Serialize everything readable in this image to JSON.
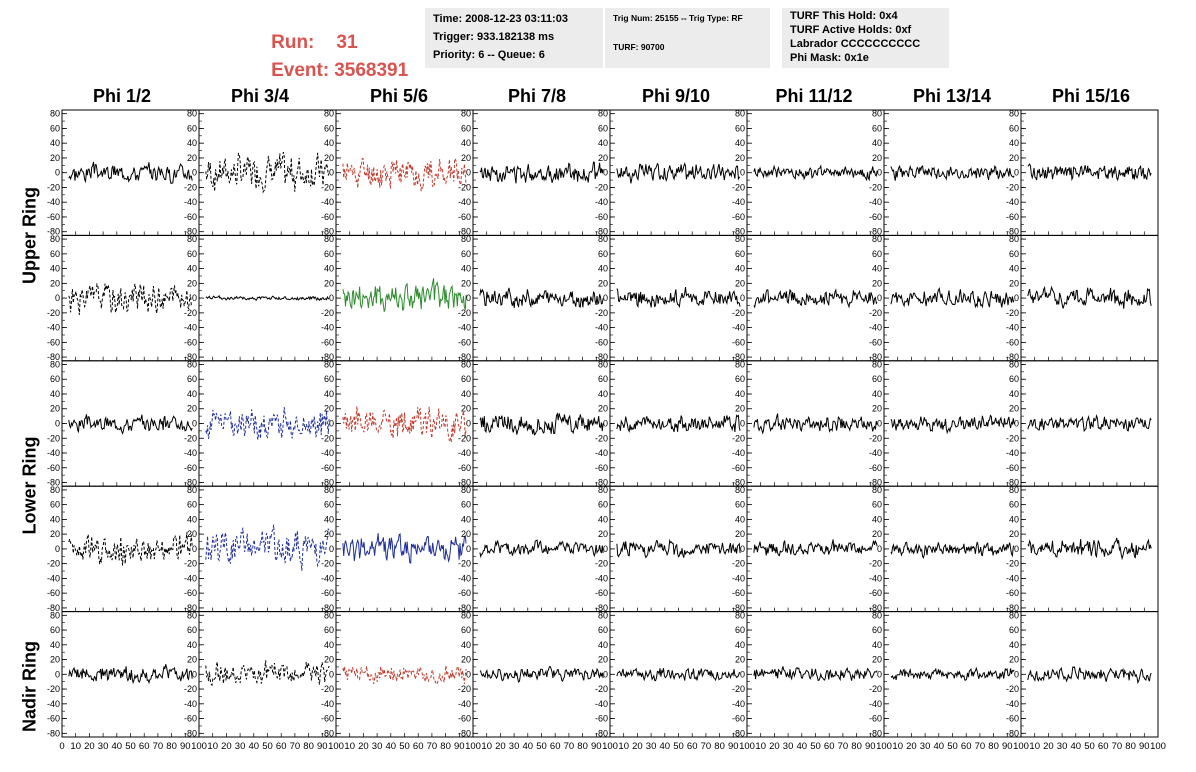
{
  "header": {
    "run_label": "Run:",
    "run_value": "31",
    "event_label": "Event:",
    "event_value": "3568391"
  },
  "time_box": {
    "line1": "Time: 2008-12-23 03:11:03",
    "line2": "Trigger: 933.182138 ms",
    "line3": "Priority: 6 -- Queue: 6"
  },
  "trig_box": {
    "line1": "Trig Num: 25155 -- Trig Type: RF",
    "line2": "TURF: 90700"
  },
  "turf_box": {
    "line1": "TURF This Hold: 0x4",
    "line2": "TURF Active Holds: 0xf",
    "line3": "Labrador CCCCCCCCCC",
    "line4": "Phi Mask: 0x1e"
  },
  "columns": [
    "Phi 1/2",
    "Phi 3/4",
    "Phi 5/6",
    "Phi 7/8",
    "Phi 9/10",
    "Phi 11/12",
    "Phi 13/14",
    "Phi 15/16"
  ],
  "rows": [
    "Upper Ring",
    "Lower Ring",
    "Nadir Ring"
  ],
  "chart_data": {
    "type": "line",
    "title": "",
    "xlabel": "",
    "ylabel": "",
    "xlim": [
      0,
      100
    ],
    "ylim": [
      -85,
      85
    ],
    "y_ticks": [
      "80",
      "60",
      "40",
      "20",
      "0",
      "-20",
      "-40",
      "-60",
      "-80"
    ],
    "x_tick_labels_first": [
      "0",
      "10",
      "20",
      "30",
      "40",
      "50",
      "60",
      "70",
      "80",
      "90",
      "100"
    ],
    "x_tick_labels_rest": [
      "10",
      "20",
      "30",
      "40",
      "50",
      "60",
      "70",
      "80",
      "90",
      "100"
    ],
    "grid": false,
    "colors": {
      "black": "#000000",
      "red": "#c0392b",
      "green": "#2e8b2e",
      "blue": "#1f2f9a"
    },
    "panels": [
      [
        {
          "color": "black",
          "dashed": false,
          "amp": 18,
          "seed": 3
        },
        {
          "color": "black",
          "dashed": true,
          "amp": 35,
          "seed": 7
        },
        {
          "color": "red",
          "dashed": true,
          "amp": 32,
          "seed": 11
        },
        {
          "color": "black",
          "dashed": false,
          "amp": 18,
          "seed": 13
        },
        {
          "color": "black",
          "dashed": false,
          "amp": 18,
          "seed": 17
        },
        {
          "color": "black",
          "dashed": false,
          "amp": 12,
          "seed": 19
        },
        {
          "color": "black",
          "dashed": false,
          "amp": 14,
          "seed": 23
        },
        {
          "color": "black",
          "dashed": false,
          "amp": 16,
          "seed": 29
        }
      ],
      [
        {
          "color": "black",
          "dashed": true,
          "amp": 30,
          "seed": 31
        },
        {
          "color": "black",
          "dashed": false,
          "amp": 4,
          "seed": 37
        },
        {
          "color": "green",
          "dashed": false,
          "amp": 30,
          "seed": 41
        },
        {
          "color": "black",
          "dashed": false,
          "amp": 18,
          "seed": 43
        },
        {
          "color": "black",
          "dashed": false,
          "amp": 18,
          "seed": 47
        },
        {
          "color": "black",
          "dashed": false,
          "amp": 16,
          "seed": 53
        },
        {
          "color": "black",
          "dashed": false,
          "amp": 16,
          "seed": 59
        },
        {
          "color": "black",
          "dashed": false,
          "amp": 18,
          "seed": 61
        }
      ],
      [
        {
          "color": "black",
          "dashed": false,
          "amp": 16,
          "seed": 67
        },
        {
          "color": "blue",
          "dashed": true,
          "amp": 30,
          "seed": 71
        },
        {
          "color": "red",
          "dashed": true,
          "amp": 32,
          "seed": 73
        },
        {
          "color": "black",
          "dashed": false,
          "amp": 20,
          "seed": 79
        },
        {
          "color": "black",
          "dashed": false,
          "amp": 16,
          "seed": 83
        },
        {
          "color": "black",
          "dashed": false,
          "amp": 14,
          "seed": 89
        },
        {
          "color": "black",
          "dashed": false,
          "amp": 16,
          "seed": 97
        },
        {
          "color": "black",
          "dashed": false,
          "amp": 15,
          "seed": 101
        }
      ],
      [
        {
          "color": "black",
          "dashed": true,
          "amp": 28,
          "seed": 103
        },
        {
          "color": "blue",
          "dashed": true,
          "amp": 34,
          "seed": 107
        },
        {
          "color": "blue",
          "dashed": false,
          "amp": 26,
          "seed": 109
        },
        {
          "color": "black",
          "dashed": false,
          "amp": 14,
          "seed": 113
        },
        {
          "color": "black",
          "dashed": false,
          "amp": 16,
          "seed": 127
        },
        {
          "color": "black",
          "dashed": false,
          "amp": 14,
          "seed": 131
        },
        {
          "color": "black",
          "dashed": false,
          "amp": 14,
          "seed": 137
        },
        {
          "color": "black",
          "dashed": false,
          "amp": 18,
          "seed": 139
        }
      ],
      [
        {
          "color": "black",
          "dashed": false,
          "amp": 15,
          "seed": 149
        },
        {
          "color": "black",
          "dashed": true,
          "amp": 22,
          "seed": 151
        },
        {
          "color": "red",
          "dashed": true,
          "amp": 18,
          "seed": 157
        },
        {
          "color": "black",
          "dashed": false,
          "amp": 12,
          "seed": 163
        },
        {
          "color": "black",
          "dashed": false,
          "amp": 12,
          "seed": 167
        },
        {
          "color": "black",
          "dashed": false,
          "amp": 12,
          "seed": 173
        },
        {
          "color": "black",
          "dashed": false,
          "amp": 12,
          "seed": 179
        },
        {
          "color": "black",
          "dashed": false,
          "amp": 14,
          "seed": 181
        }
      ]
    ]
  }
}
